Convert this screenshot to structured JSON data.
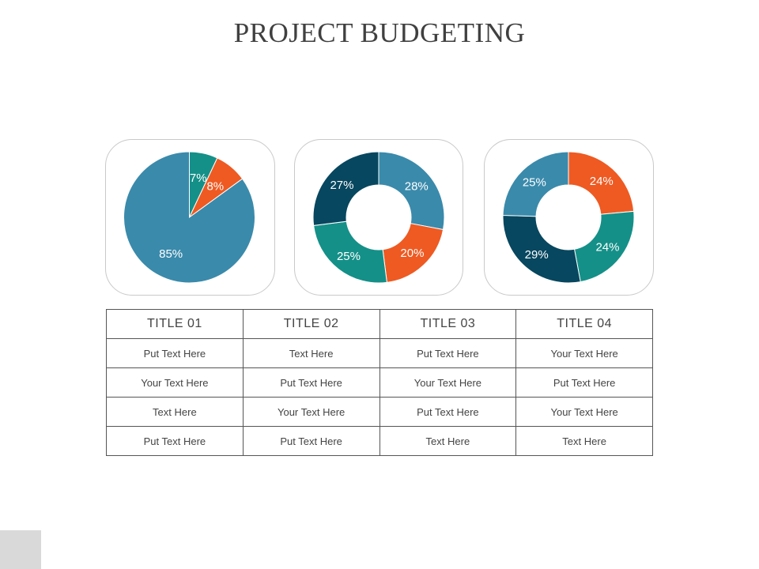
{
  "page": {
    "title": "PROJECT BUDGETING"
  },
  "colors": {
    "blue": "#3a8aab",
    "orange": "#ee5a22",
    "teal": "#149088",
    "navy": "#07475f"
  },
  "chart_data": [
    {
      "type": "pie",
      "slices": [
        {
          "label": "7%",
          "value": 7,
          "color": "#149088"
        },
        {
          "label": "8%",
          "value": 8,
          "color": "#ee5a22"
        },
        {
          "label": "85%",
          "value": 85,
          "color": "#3a8aab"
        }
      ]
    },
    {
      "type": "pie",
      "donut": true,
      "slices": [
        {
          "label": "28%",
          "value": 28,
          "color": "#3a8aab"
        },
        {
          "label": "20%",
          "value": 20,
          "color": "#ee5a22"
        },
        {
          "label": "25%",
          "value": 25,
          "color": "#149088"
        },
        {
          "label": "27%",
          "value": 27,
          "color": "#07475f"
        }
      ]
    },
    {
      "type": "pie",
      "donut": true,
      "slices": [
        {
          "label": "24%",
          "value": 24,
          "color": "#ee5a22"
        },
        {
          "label": "24%",
          "value": 24,
          "color": "#149088"
        },
        {
          "label": "29%",
          "value": 29,
          "color": "#07475f"
        },
        {
          "label": "25%",
          "value": 25,
          "color": "#3a8aab"
        }
      ]
    }
  ],
  "table": {
    "headers": [
      "TITLE  01",
      "TITLE  02",
      "TITLE  03",
      "TITLE  04"
    ],
    "rows": [
      [
        "Put  Text Here",
        "Text Here",
        "Put Text Here",
        "Your Text Here"
      ],
      [
        "Your Text Here",
        "Put Text Here",
        "Your Text Here",
        "Put  Text Here"
      ],
      [
        "Text Here",
        "Your Text Here",
        "Put  Text Here",
        "Your Text Here"
      ],
      [
        "Put Text Here",
        "Put Text Here",
        "Text Here",
        "Text Here"
      ]
    ]
  }
}
